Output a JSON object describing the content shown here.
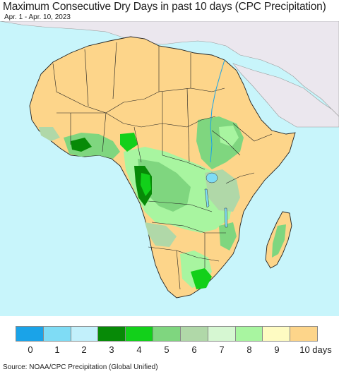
{
  "title": "Maximum Consecutive Dry Days in past 10 days (CPC Precipitation)",
  "subtitle": "Apr. 1 - Apr. 10, 2023",
  "source": "Source: NOAA/CPC Precipitation (Global Unified)",
  "colors": {
    "ocean": "#c8f5fb",
    "land_outside": "#ebe7ee",
    "dry_land": "#fdd58a",
    "border": "#222222"
  },
  "legend": {
    "labels": [
      "0",
      "1",
      "2",
      "3",
      "4",
      "5",
      "6",
      "7",
      "8",
      "9",
      "10 days"
    ],
    "colors": [
      "#1aa3e8",
      "#7fdcf5",
      "#c2f0fb",
      "#078a07",
      "#12d01a",
      "#7fd67f",
      "#b0d8a8",
      "#d6f7d2",
      "#a8f5a0",
      "#fefbc2",
      "#fdd58a"
    ]
  }
}
